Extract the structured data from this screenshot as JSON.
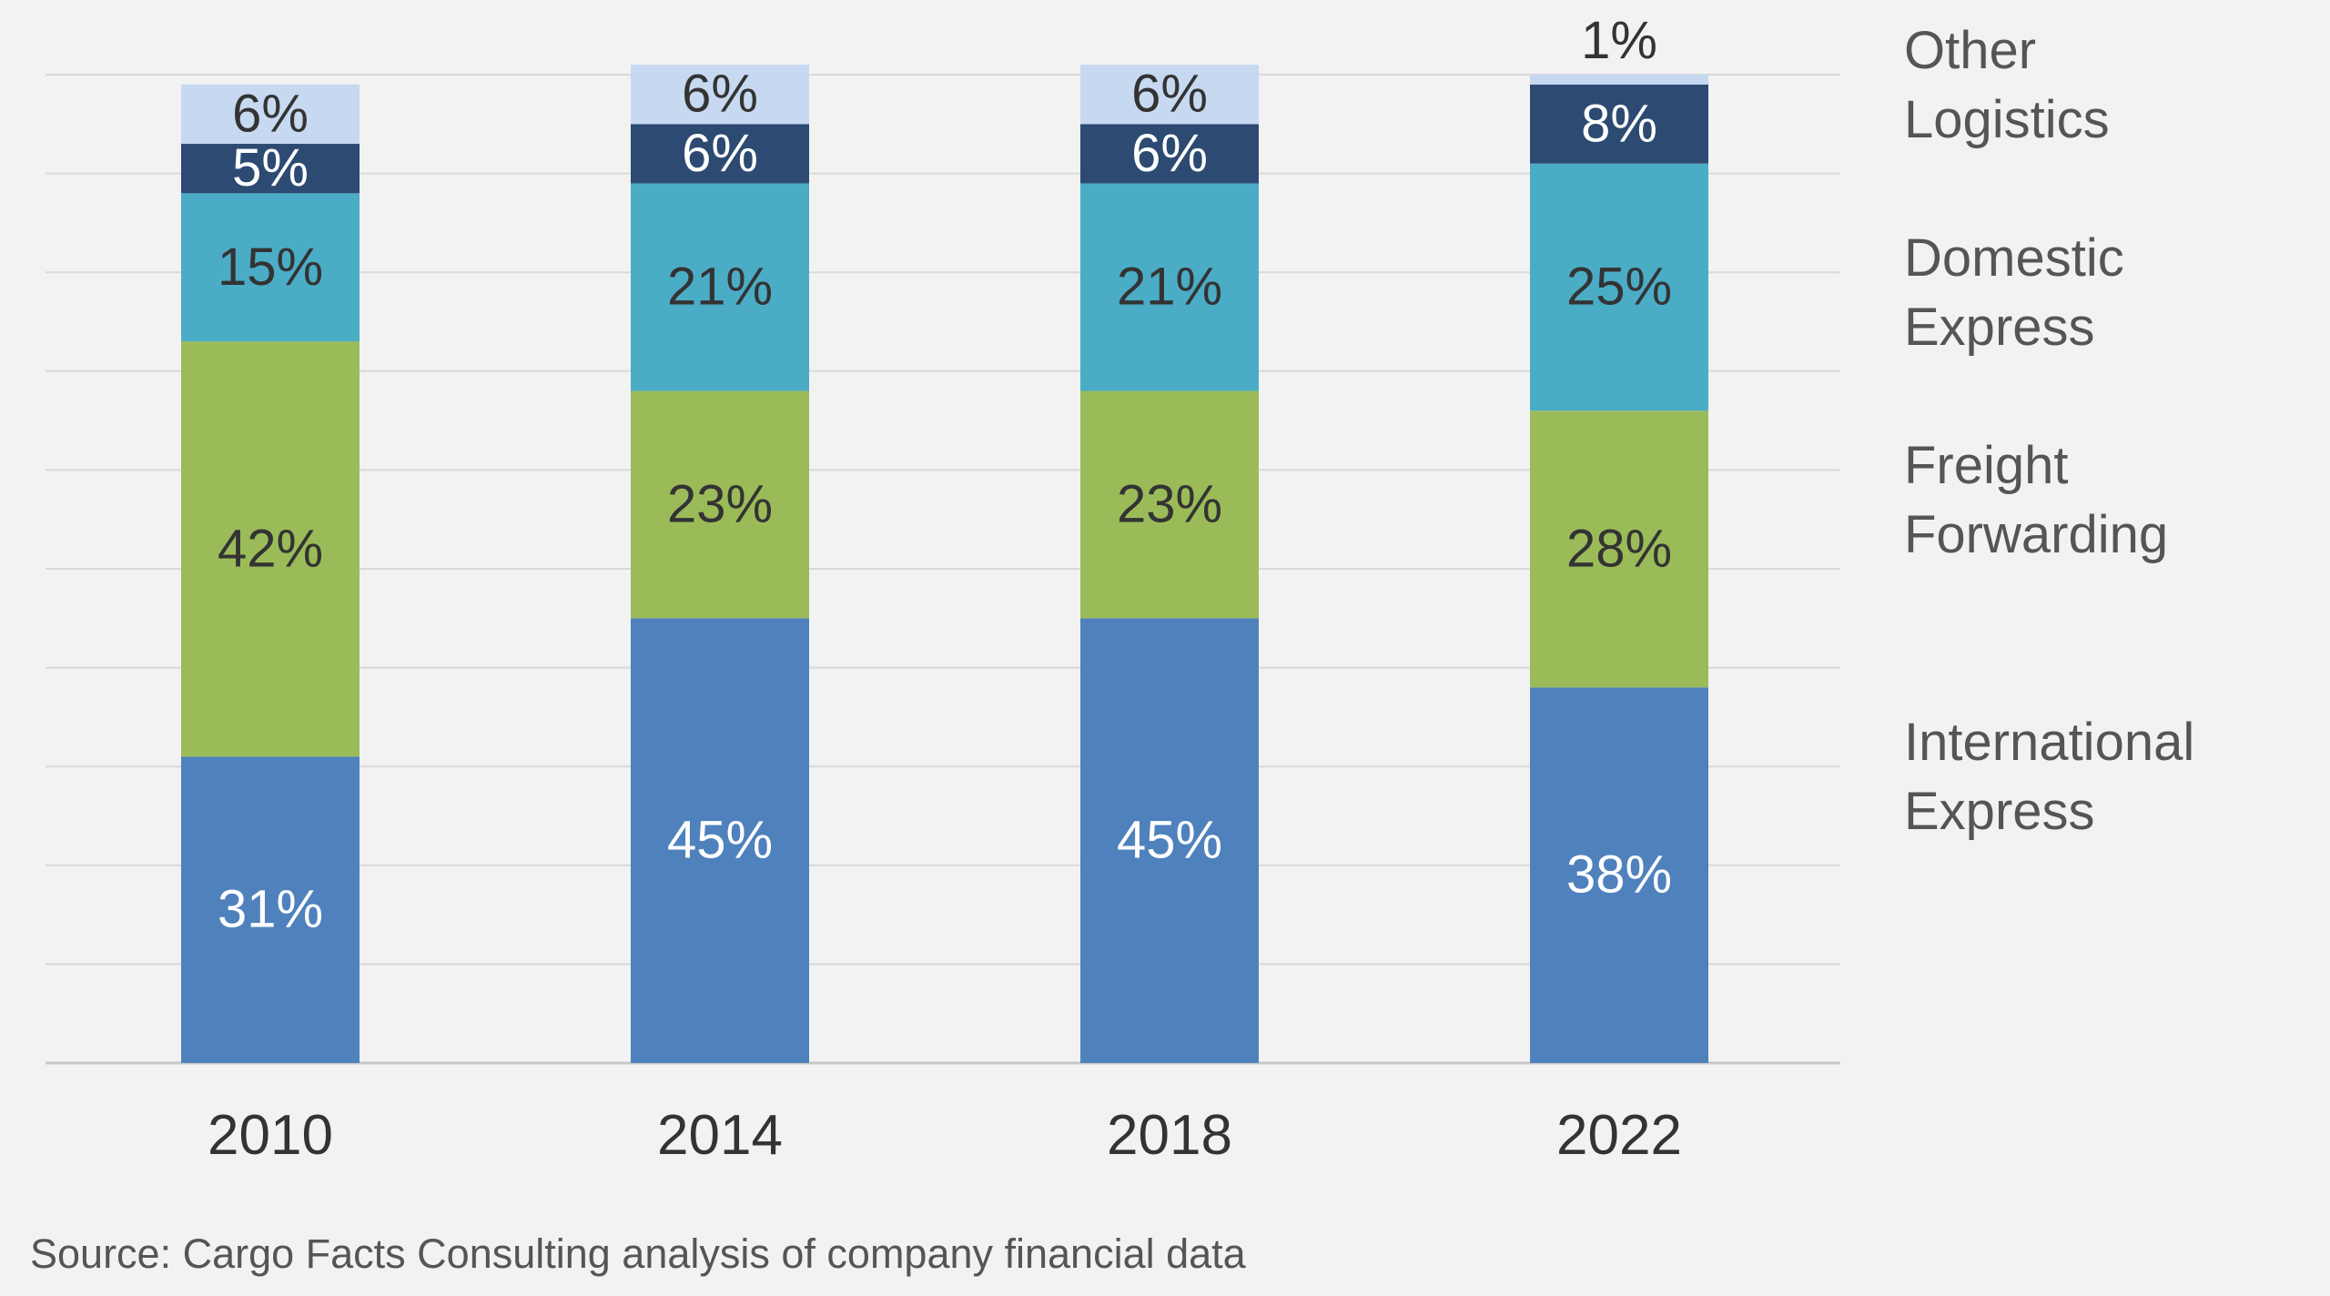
{
  "chart_data": {
    "type": "bar",
    "stacked": true,
    "categories": [
      "2010",
      "2014",
      "2018",
      "2022"
    ],
    "series": [
      {
        "name": "International Express",
        "color": "#4f81bd",
        "label_color": "#ffffff",
        "values": [
          31,
          45,
          45,
          38
        ],
        "labels": [
          "31%",
          "45%",
          "45%",
          "38%"
        ]
      },
      {
        "name": "Freight Forwarding",
        "color": "#9bbb59",
        "label_color": "#333333",
        "values": [
          42,
          23,
          23,
          28
        ],
        "labels": [
          "42%",
          "23%",
          "23%",
          "28%"
        ]
      },
      {
        "name": "Domestic Express",
        "color": "#4bacc6",
        "label_color": "#333333",
        "values": [
          15,
          21,
          21,
          25
        ],
        "labels": [
          "15%",
          "21%",
          "21%",
          "25%"
        ]
      },
      {
        "name": "Logistics",
        "color": "#2c4a72",
        "label_color": "#ffffff",
        "values": [
          5,
          6,
          6,
          8
        ],
        "labels": [
          "5%",
          "6%",
          "6%",
          "8%"
        ]
      },
      {
        "name": "Other",
        "color": "#c6d9f1",
        "label_color": "#333333",
        "values": [
          6,
          6,
          6,
          1
        ],
        "labels": [
          "6%",
          "6%",
          "6%",
          "1%"
        ]
      }
    ],
    "legend": [
      {
        "lines": [
          "Other",
          "Logistics"
        ]
      },
      {
        "lines": [
          "Domestic",
          "Express"
        ]
      },
      {
        "lines": [
          "Freight",
          "Forwarding"
        ]
      },
      {
        "lines": [
          "International",
          "Express"
        ]
      }
    ],
    "legend_position": "right",
    "ylim": [
      0,
      100
    ],
    "grid": true,
    "title": "",
    "xlabel": "",
    "ylabel": ""
  },
  "source": "Source: Cargo Facts Consulting analysis of company financial data"
}
